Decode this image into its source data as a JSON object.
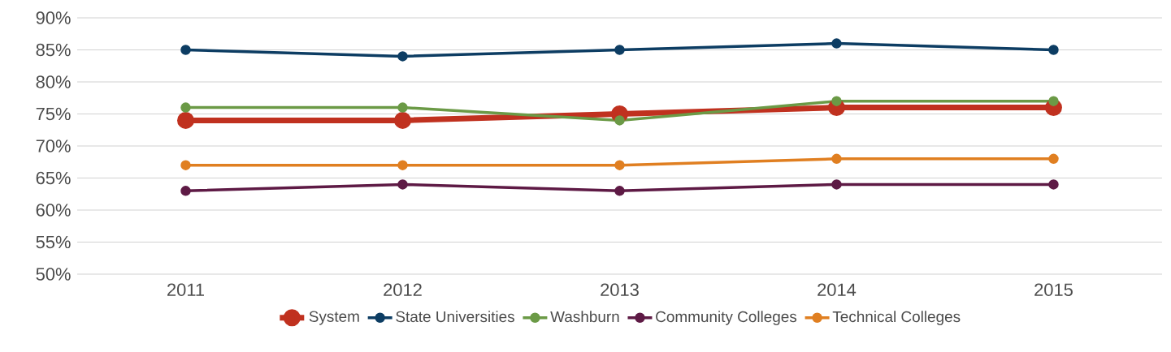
{
  "chart_data": {
    "type": "line",
    "categories": [
      "2011",
      "2012",
      "2013",
      "2014",
      "2015"
    ],
    "series": [
      {
        "name": "System",
        "color": "#c0311f",
        "values": [
          74,
          74,
          75,
          76,
          76
        ]
      },
      {
        "name": "State Universities",
        "color": "#0d3d63",
        "values": [
          85,
          84,
          85,
          86,
          85
        ]
      },
      {
        "name": "Washburn",
        "color": "#6b9a46",
        "values": [
          76,
          76,
          74,
          77,
          77
        ]
      },
      {
        "name": "Community Colleges",
        "color": "#5e1a45",
        "values": [
          63,
          64,
          63,
          64,
          64
        ]
      },
      {
        "name": "Technical Colleges",
        "color": "#e07f21",
        "values": [
          67,
          67,
          67,
          68,
          68
        ]
      }
    ],
    "ylim": [
      50,
      90
    ],
    "yticks": [
      {
        "value": 50,
        "label": "50%"
      },
      {
        "value": 55,
        "label": "55%"
      },
      {
        "value": 60,
        "label": "60%"
      },
      {
        "value": 65,
        "label": "65%"
      },
      {
        "value": 70,
        "label": "70%"
      },
      {
        "value": 75,
        "label": "75%"
      },
      {
        "value": 80,
        "label": "80%"
      },
      {
        "value": 85,
        "label": "85%"
      },
      {
        "value": 90,
        "label": "90%"
      }
    ],
    "grid": "y",
    "legend": "bottom",
    "marker": "circle",
    "line_style": "solid"
  }
}
